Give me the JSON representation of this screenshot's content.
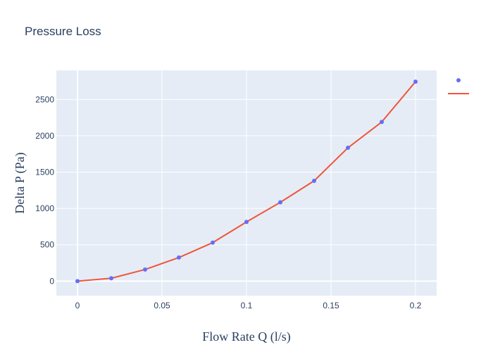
{
  "chart_data": {
    "type": "line",
    "title": "Pressure Loss",
    "xlabel": "Flow Rate Q (l/s)",
    "ylabel": "Delta P (Pa)",
    "xlim": [
      -0.0125,
      0.2125
    ],
    "ylim": [
      -200,
      2900
    ],
    "x_ticks": [
      0,
      0.05,
      0.1,
      0.15,
      0.2
    ],
    "x_tick_labels": [
      "0",
      "0.05",
      "0.1",
      "0.15",
      "0.2"
    ],
    "y_ticks": [
      0,
      500,
      1000,
      1500,
      2000,
      2500
    ],
    "y_tick_labels": [
      "0",
      "500",
      "1000",
      "1500",
      "2000",
      "2500"
    ],
    "grid": true,
    "legend": "top-right",
    "colors": {
      "plot_bg": "#e5ecf6",
      "grid": "#ffffff",
      "markers": "#636efa",
      "line": "#ef553b",
      "text": "#2a3f5f"
    },
    "series": [
      {
        "mode": "markers",
        "x": [
          0,
          0.02,
          0.04,
          0.06,
          0.08,
          0.1,
          0.12,
          0.14,
          0.16,
          0.18,
          0.2
        ],
        "y": [
          0,
          40,
          160,
          325,
          530,
          815,
          1085,
          1380,
          1835,
          2190,
          2745
        ]
      },
      {
        "mode": "lines",
        "x": [
          0,
          0.02,
          0.04,
          0.06,
          0.08,
          0.1,
          0.12,
          0.14,
          0.16,
          0.18,
          0.2
        ],
        "y": [
          0,
          40,
          160,
          325,
          530,
          815,
          1085,
          1380,
          1835,
          2190,
          2745
        ]
      }
    ]
  }
}
